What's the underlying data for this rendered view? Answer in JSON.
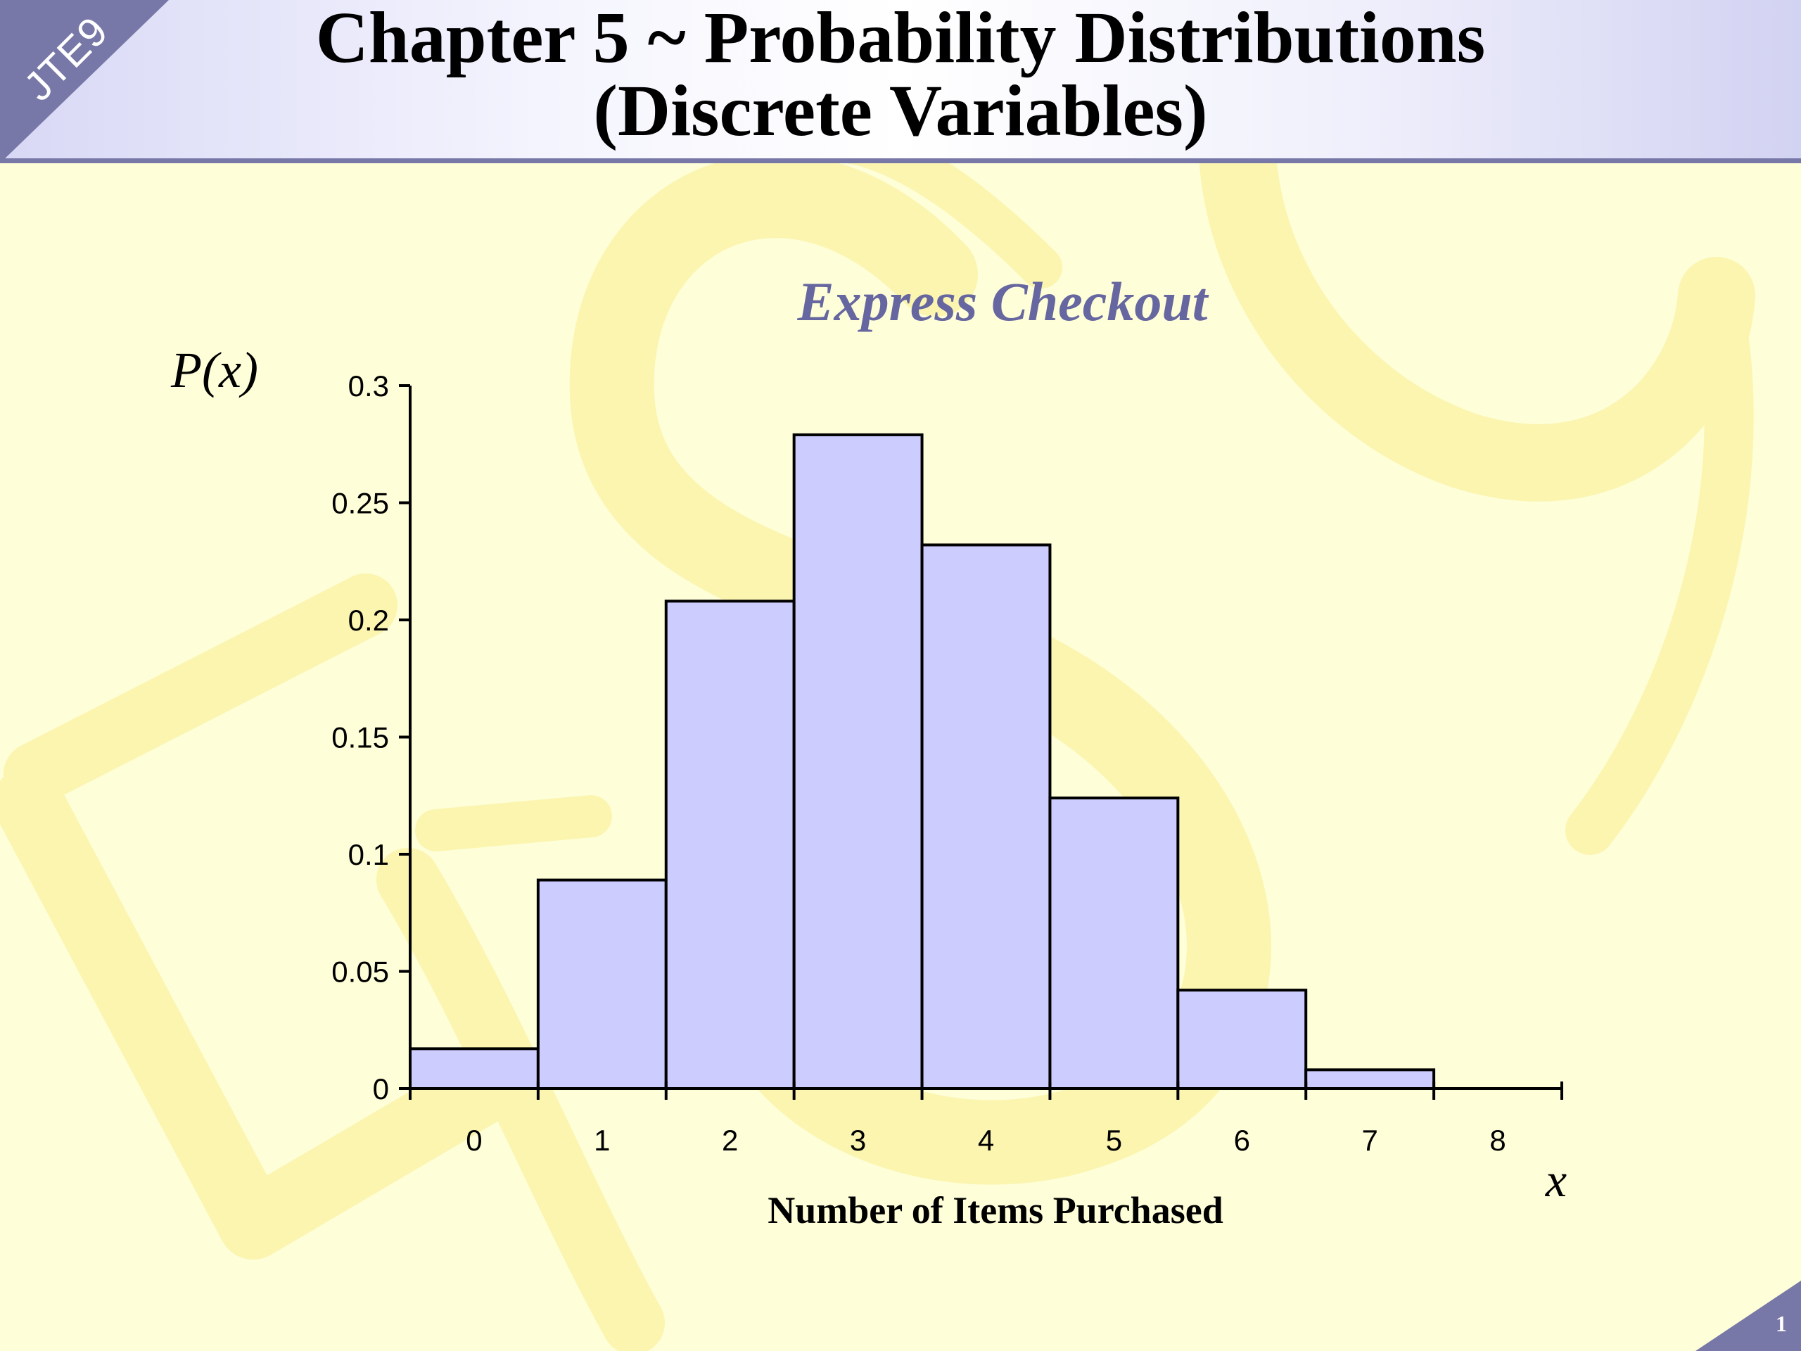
{
  "slide": {
    "corner_label": "JTE9",
    "title_line1": "Chapter 5 ~ Probability Distributions",
    "title_line2": "(Discrete Variables)",
    "page_number": "1"
  },
  "colors": {
    "background": "#fefed8",
    "watermark": "#fbf5b0",
    "title_band_edge": "#7878a8",
    "bar_fill": "#ccccff",
    "bar_stroke": "#000000",
    "chart_title": "#6666a0"
  },
  "chart_data": {
    "type": "bar",
    "title": "Express Checkout",
    "ylabel": "P(x)",
    "xlabel": "Number of Items Purchased",
    "x_variable": "x",
    "categories": [
      "0",
      "1",
      "2",
      "3",
      "4",
      "5",
      "6",
      "7",
      "8"
    ],
    "values": [
      0.017,
      0.089,
      0.208,
      0.279,
      0.232,
      0.124,
      0.042,
      0.008,
      0
    ],
    "yticks": [
      "0",
      "0.05",
      "0.1",
      "0.15",
      "0.2",
      "0.25",
      "0.3"
    ],
    "ylim": [
      0,
      0.3
    ],
    "grid": false,
    "legend": "none"
  }
}
